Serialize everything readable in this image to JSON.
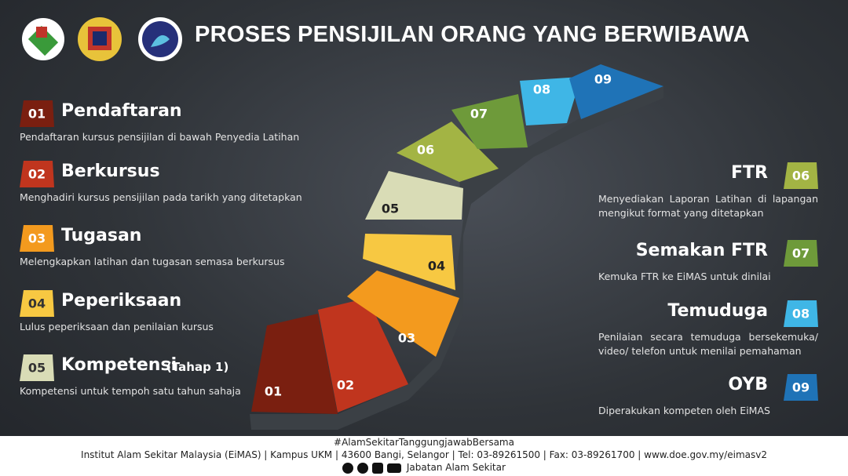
{
  "header": {
    "title": "PROSES PENSIJILAN ORANG YANG BERWIBAWA"
  },
  "steps": [
    {
      "number": "01",
      "title": "Pendaftaran",
      "description": "Pendaftaran kursus pensijilan di bawah Penyedia Latihan",
      "color": "#7a1f10"
    },
    {
      "number": "02",
      "title": "Berkursus",
      "description": "Menghadiri kursus pensijilan pada tarikh yang ditetapkan",
      "color": "#c0351e"
    },
    {
      "number": "03",
      "title": "Tugasan",
      "description": "Melengkapkan latihan dan tugasan semasa berkursus",
      "color": "#f39a1e"
    },
    {
      "number": "04",
      "title": "Peperiksaan",
      "description": "Lulus peperiksaan dan penilaian kursus",
      "color": "#f7c842"
    },
    {
      "number": "05",
      "title": "Kompetensi",
      "note": "(Tahap 1)",
      "description": "Kompetensi untuk tempoh satu tahun sahaja",
      "color": "#d9dcb6"
    },
    {
      "number": "06",
      "title": "FTR",
      "description": "Menyediakan Laporan Latihan  di lapangan mengikut format yang ditetapkan",
      "color": "#a3b444"
    },
    {
      "number": "07",
      "title": "Semakan FTR",
      "description": "Kemuka FTR ke EiMAS untuk dinilai",
      "color": "#6e9a3a"
    },
    {
      "number": "08",
      "title": "Temuduga",
      "description": "Penilaian secara temuduga bersekemuka/ video/ telefon untuk menilai pemahaman",
      "color": "#3fb6e6"
    },
    {
      "number": "09",
      "title": "OYB",
      "description": "Diperakukan kompeten oleh EiMAS",
      "color": "#1f73b7"
    }
  ],
  "footer": {
    "hashtag": "#AlamSekitarTanggungjawabBersama",
    "address": "Institut Alam Sekitar Malaysia (EiMAS) | Kampus UKM | 43600 Bangi, Selangor | Tel: 03-89261500 | Fax: 03-89261700 | www.doe.gov.my/eimasv2",
    "agency": "Jabatan Alam Sekitar"
  }
}
